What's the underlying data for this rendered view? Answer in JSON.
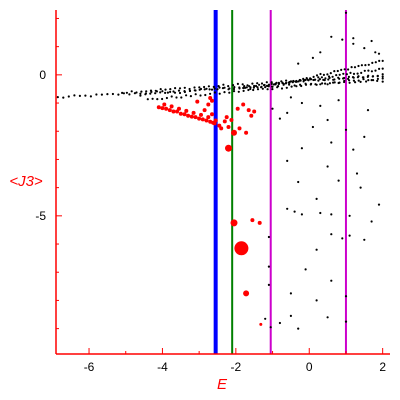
{
  "chart_data": {
    "type": "scatter",
    "xlabel": "E",
    "ylabel": "<J3>",
    "xlim": [
      -6.9,
      2.2
    ],
    "ylim": [
      -9.9,
      2.3
    ],
    "x_ticks": [
      -6,
      -4,
      -2,
      0,
      2
    ],
    "y_ticks": [
      0,
      -5
    ],
    "x_tick_labels": [
      "-6",
      "-4",
      "-2",
      "0",
      "2"
    ],
    "y_tick_labels": [
      "0",
      "-5"
    ],
    "grid": false,
    "axis_color": "#ff0000",
    "vlines": [
      {
        "x": -2.55,
        "color": "#0000ff",
        "width": "thick"
      },
      {
        "x": -2.1,
        "color": "#008000",
        "width": "thin"
      },
      {
        "x": -1.05,
        "color": "#cc00cc",
        "width": "thin"
      },
      {
        "x": 1.0,
        "color": "#cc00cc",
        "width": "thin"
      }
    ],
    "series": [
      {
        "color": "#ff0000",
        "marker": "red-circle",
        "points": [
          [
            -4.1,
            -1.15,
            2
          ],
          [
            -4.0,
            -1.18,
            2
          ],
          [
            -3.9,
            -1.2,
            2
          ],
          [
            -3.8,
            -1.25,
            2
          ],
          [
            -3.7,
            -1.3,
            2
          ],
          [
            -3.6,
            -1.3,
            2
          ],
          [
            -3.5,
            -1.38,
            2
          ],
          [
            -3.4,
            -1.4,
            2
          ],
          [
            -3.3,
            -1.45,
            2
          ],
          [
            -3.2,
            -1.48,
            2
          ],
          [
            -3.1,
            -1.5,
            2
          ],
          [
            -3.0,
            -1.55,
            2
          ],
          [
            -2.9,
            -1.58,
            2
          ],
          [
            -2.8,
            -1.62,
            2
          ],
          [
            -2.7,
            -1.66,
            2
          ],
          [
            -2.62,
            -1.7,
            2
          ],
          [
            -2.58,
            -1.72,
            2
          ],
          [
            -3.95,
            -1.05,
            2
          ],
          [
            -3.75,
            -1.12,
            2
          ],
          [
            -3.55,
            -1.2,
            2
          ],
          [
            -3.35,
            -1.28,
            2
          ],
          [
            -3.15,
            -1.35,
            2
          ],
          [
            -2.95,
            -1.42,
            2
          ],
          [
            -2.75,
            -1.5,
            2
          ],
          [
            -3.05,
            -0.95,
            2
          ],
          [
            -2.85,
            -1.25,
            2
          ],
          [
            -2.65,
            -1.4,
            2
          ],
          [
            -2.75,
            -1.05,
            2
          ],
          [
            -2.65,
            -0.92,
            2
          ],
          [
            -2.55,
            -1.62,
            2
          ],
          [
            -2.7,
            -0.82,
            2
          ],
          [
            -2.45,
            -1.8,
            2
          ],
          [
            -2.4,
            -1.9,
            2
          ],
          [
            -2.25,
            -1.5,
            2
          ],
          [
            -2.12,
            -1.6,
            2
          ],
          [
            -1.95,
            -1.2,
            2
          ],
          [
            -1.8,
            -1.05,
            2
          ],
          [
            -1.65,
            -1.25,
            2
          ],
          [
            -1.58,
            -1.45,
            2
          ],
          [
            -1.9,
            -1.9,
            2
          ],
          [
            -1.72,
            -2.05,
            2
          ],
          [
            -1.5,
            -1.3,
            2
          ],
          [
            -2.3,
            -1.65,
            2
          ],
          [
            -2.2,
            -1.85,
            2
          ],
          [
            -2.2,
            -2.6,
            3.5
          ],
          [
            -2.05,
            -2.05,
            3
          ],
          [
            -2.05,
            -5.25,
            3.5
          ],
          [
            -1.85,
            -6.15,
            7
          ],
          [
            -1.72,
            -7.75,
            3
          ],
          [
            -1.55,
            -5.15,
            2
          ],
          [
            -1.35,
            -5.25,
            2
          ],
          [
            -1.32,
            -8.85,
            1.5
          ]
        ]
      },
      {
        "color": "#000000",
        "marker": "black-dot",
        "bands": [
          {
            "x0": -6.85,
            "x1": 2.0,
            "y0": -0.8,
            "y1": -0.2,
            "n": 60
          },
          {
            "x0": -5.1,
            "x1": 2.0,
            "y0": -0.62,
            "y1": -0.02,
            "n": 55
          },
          {
            "x0": -4.6,
            "x1": 2.0,
            "y0": -0.72,
            "y1": 0.0,
            "n": 50
          },
          {
            "x0": -4.4,
            "x1": 2.0,
            "y0": -0.88,
            "y1": -0.12,
            "n": 50
          },
          {
            "x0": -1.8,
            "x1": 2.0,
            "y0": -0.5,
            "y1": 0.2,
            "n": 40
          },
          {
            "x0": -1.2,
            "x1": 2.0,
            "y0": -0.45,
            "y1": 0.5,
            "n": 35
          }
        ],
        "points": [
          [
            1.0,
            2.2
          ],
          [
            0.6,
            1.35
          ],
          [
            0.9,
            1.25
          ],
          [
            1.2,
            1.1
          ],
          [
            1.5,
            0.95
          ],
          [
            1.8,
            0.8
          ],
          [
            1.2,
            1.3
          ],
          [
            0.1,
            0.6
          ],
          [
            0.3,
            0.8
          ],
          [
            -0.3,
            0.4
          ],
          [
            1.7,
            1.2
          ],
          [
            1.9,
            0.75
          ],
          [
            -0.5,
            -0.8
          ],
          [
            -0.2,
            -1.0
          ],
          [
            0.3,
            -1.1
          ],
          [
            0.8,
            -0.9
          ],
          [
            -1.0,
            -1.2
          ],
          [
            -0.6,
            -1.35
          ],
          [
            0.5,
            -1.6
          ],
          [
            1.6,
            -1.25
          ],
          [
            -0.8,
            -1.55
          ],
          [
            0.1,
            -1.85
          ],
          [
            1.0,
            -1.95
          ],
          [
            1.5,
            -2.2
          ],
          [
            0.6,
            -2.4
          ],
          [
            -0.2,
            -2.6
          ],
          [
            1.2,
            -2.65
          ],
          [
            -0.6,
            -3.05
          ],
          [
            0.5,
            -3.25
          ],
          [
            1.3,
            -3.5
          ],
          [
            -0.3,
            -3.8
          ],
          [
            0.8,
            -3.75
          ],
          [
            1.4,
            -4.0
          ],
          [
            0.2,
            -4.4
          ],
          [
            1.9,
            -4.6
          ],
          [
            -0.6,
            -4.75
          ],
          [
            -0.4,
            -4.85
          ],
          [
            -0.2,
            -4.95
          ],
          [
            0.3,
            -4.9
          ],
          [
            0.6,
            -4.95
          ],
          [
            1.1,
            -5.0
          ],
          [
            1.7,
            -5.2
          ],
          [
            0.6,
            -5.65
          ],
          [
            1.1,
            -5.7
          ],
          [
            1.5,
            -5.85
          ],
          [
            0.9,
            -5.8
          ],
          [
            0.2,
            -6.2
          ],
          [
            -1.1,
            -6.8
          ],
          [
            -0.1,
            -6.9
          ],
          [
            0.6,
            -7.3
          ],
          [
            -1.1,
            -7.45
          ],
          [
            -0.5,
            -7.75
          ],
          [
            0.2,
            -8.0
          ],
          [
            1.0,
            -7.85
          ],
          [
            -0.5,
            -8.55
          ],
          [
            0.5,
            -8.6
          ],
          [
            -0.8,
            -8.8
          ],
          [
            -1.05,
            -8.95
          ],
          [
            -0.3,
            -9.0
          ],
          [
            -1.2,
            -8.65
          ],
          [
            1.0,
            -8.75
          ],
          [
            -1.1,
            -5.75
          ]
        ]
      }
    ]
  }
}
